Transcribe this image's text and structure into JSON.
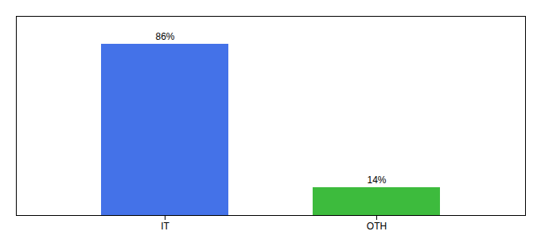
{
  "chart_data": {
    "type": "bar",
    "categories": [
      "IT",
      "OTH"
    ],
    "values": [
      86,
      14
    ],
    "colors": [
      "#4472e8",
      "#3dbb3d"
    ],
    "value_labels": [
      "86%",
      "14%"
    ],
    "data_labels": true,
    "ylim": [
      0,
      100
    ],
    "grid": false,
    "tick_labels": "x"
  }
}
